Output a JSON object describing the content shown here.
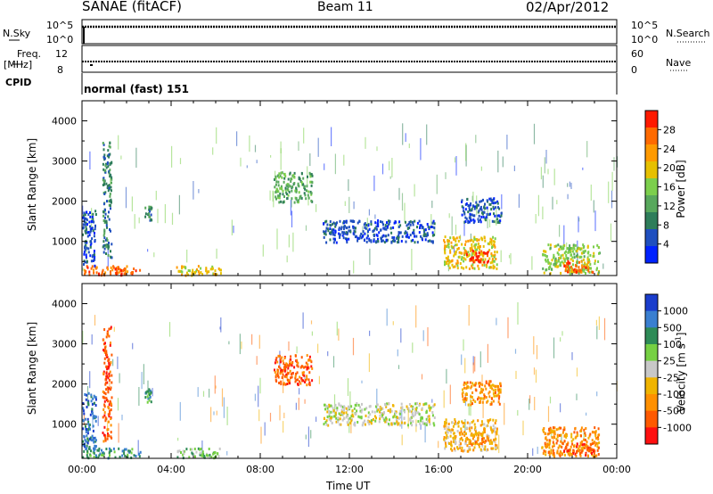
{
  "header": {
    "radar": "SANAE (fitACF)",
    "beam": "Beam 11",
    "date": "02/Apr/2012"
  },
  "top_panels": {
    "nsky_label": "N.Sky",
    "nsky_ticks": [
      "10^5",
      "10^0"
    ],
    "nsearch_label": "N.Search",
    "nsearch_ticks": [
      "10^5",
      "10^0"
    ],
    "freq_label_1": "Freq.",
    "freq_label_2": "[MHz]",
    "freq_ticks": [
      "12",
      "8"
    ],
    "nave_label": "Nave",
    "nave_ticks": [
      "60",
      "0"
    ],
    "cpid_label": "CPID",
    "cpid_value": "normal (fast) 151"
  },
  "colors": {
    "power_scale": [
      "#0022ff",
      "#1f4fbf",
      "#2e7d5a",
      "#58a85c",
      "#7ccf4c",
      "#e6c000",
      "#ff9a00",
      "#ff6a00",
      "#ff1a00"
    ],
    "velocity_scale": [
      "#1a3dcc",
      "#3a7fd0",
      "#2e8b57",
      "#76d043",
      "#c8c8c8",
      "#f0b400",
      "#ff9000",
      "#ff5a00",
      "#ff1010"
    ],
    "velocity_blocks": [
      "#1a3dcc",
      "#3a7fd0",
      "#2e8b57",
      "#76d043",
      "#c8c8c8",
      "#f0b400",
      "#ff9000",
      "#ff5a00",
      "#ff1010"
    ]
  },
  "chart_data": [
    {
      "type": "heatmap",
      "name": "power",
      "ylabel": "Slant Range [km]",
      "yticks": [
        "1000",
        "2000",
        "3000",
        "4000"
      ],
      "ylim": [
        150,
        4500
      ],
      "xlim": [
        0,
        24
      ],
      "colorbar_label": "Power [dB]",
      "colorbar_ticks": [
        "4",
        "8",
        "12",
        "16",
        "20",
        "24",
        "28"
      ],
      "regions": [
        {
          "t0": 0.0,
          "t1": 2.6,
          "r0": 180,
          "r1": 420,
          "level": 7
        },
        {
          "t0": 0.0,
          "t1": 0.6,
          "r0": 420,
          "r1": 1800,
          "level": 1
        },
        {
          "t0": 0.9,
          "t1": 1.3,
          "r0": 600,
          "r1": 3500,
          "level": 2
        },
        {
          "t0": 2.8,
          "t1": 3.1,
          "r0": 1550,
          "r1": 1900,
          "level": 2
        },
        {
          "t0": 4.2,
          "t1": 6.2,
          "r0": 180,
          "r1": 420,
          "level": 5
        },
        {
          "t0": 8.6,
          "t1": 10.3,
          "r0": 2000,
          "r1": 2750,
          "level": 3
        },
        {
          "t0": 10.8,
          "t1": 15.8,
          "r0": 1000,
          "r1": 1550,
          "level": 1
        },
        {
          "t0": 16.2,
          "t1": 18.6,
          "r0": 350,
          "r1": 1150,
          "level": 5
        },
        {
          "t0": 17.2,
          "t1": 18.2,
          "r0": 500,
          "r1": 800,
          "level": 8
        },
        {
          "t0": 17.0,
          "t1": 18.8,
          "r0": 1500,
          "r1": 2100,
          "level": 1
        },
        {
          "t0": 20.6,
          "t1": 23.2,
          "r0": 220,
          "r1": 950,
          "level": 4
        },
        {
          "t0": 21.6,
          "t1": 23.0,
          "r0": 250,
          "r1": 550,
          "level": 7
        }
      ]
    },
    {
      "type": "heatmap",
      "name": "velocity",
      "ylabel": "Slant Range [km]",
      "yticks": [
        "1000",
        "2000",
        "3000",
        "4000"
      ],
      "ylim": [
        150,
        4500
      ],
      "xlim": [
        0,
        24
      ],
      "xlabel": "Time UT",
      "xticks": [
        "00:00",
        "04:00",
        "08:00",
        "12:00",
        "16:00",
        "20:00",
        "00:00"
      ],
      "colorbar_label": "Velocity [m s",
      "colorbar_label_sup": "-1",
      "colorbar_label_end": "]",
      "colorbar_ticks": [
        "1000",
        "500",
        "100",
        "25",
        "-25",
        "-100",
        "-500",
        "-1000"
      ],
      "regions": [
        {
          "t0": 0.0,
          "t1": 2.6,
          "r0": 180,
          "r1": 420,
          "level": 2
        },
        {
          "t0": 0.0,
          "t1": 0.6,
          "r0": 420,
          "r1": 1800,
          "level": 1
        },
        {
          "t0": 0.9,
          "t1": 1.3,
          "r0": 600,
          "r1": 3500,
          "level": 7
        },
        {
          "t0": 2.8,
          "t1": 3.1,
          "r0": 1550,
          "r1": 1900,
          "level": 2
        },
        {
          "t0": 4.2,
          "t1": 6.2,
          "r0": 180,
          "r1": 420,
          "level": 3
        },
        {
          "t0": 8.6,
          "t1": 10.3,
          "r0": 2000,
          "r1": 2750,
          "level": 7
        },
        {
          "t0": 10.8,
          "t1": 15.8,
          "r0": 1000,
          "r1": 1550,
          "level": 4
        },
        {
          "t0": 16.2,
          "t1": 18.6,
          "r0": 350,
          "r1": 1150,
          "level": 5
        },
        {
          "t0": 17.2,
          "t1": 18.2,
          "r0": 500,
          "r1": 800,
          "level": 6
        },
        {
          "t0": 17.0,
          "t1": 18.8,
          "r0": 1500,
          "r1": 2100,
          "level": 6
        },
        {
          "t0": 20.6,
          "t1": 23.2,
          "r0": 220,
          "r1": 950,
          "level": 6
        },
        {
          "t0": 21.6,
          "t1": 23.0,
          "r0": 250,
          "r1": 550,
          "level": 7
        }
      ]
    }
  ]
}
